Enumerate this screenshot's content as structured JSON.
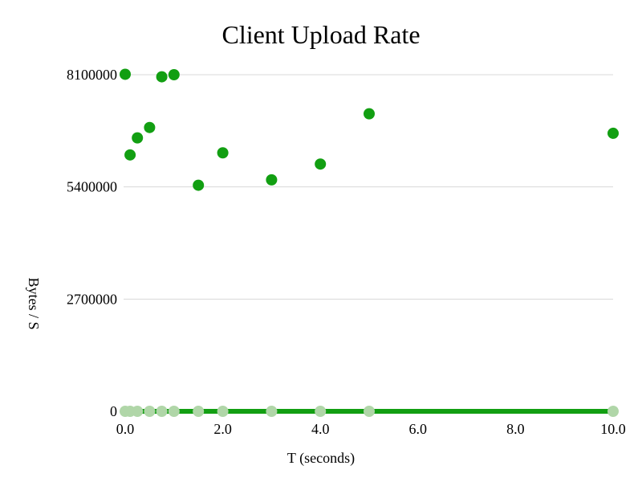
{
  "chart_data": {
    "type": "scatter",
    "title": "Client Upload Rate",
    "xlabel": "T (seconds)",
    "ylabel": "Bytes / S",
    "xlim": [
      0,
      10
    ],
    "ylim": [
      0,
      8100000
    ],
    "x_ticks": [
      "0.0",
      "2.0",
      "4.0",
      "6.0",
      "8.0",
      "10.0"
    ],
    "x_tick_values": [
      0,
      2,
      4,
      6,
      8,
      10
    ],
    "y_ticks": [
      "0",
      "2700000",
      "5400000",
      "8100000"
    ],
    "y_tick_values": [
      0,
      2700000,
      5400000,
      8100000
    ],
    "grid": "horizontal",
    "series": [
      {
        "color": "#129f12",
        "x": [
          0,
          0.1,
          0.25,
          0.5,
          0.75,
          1.0,
          1.5,
          2.0,
          3.0,
          4.0,
          5.0,
          10.0
        ],
        "y": [
          8110000,
          6170000,
          6580000,
          6830000,
          8050000,
          8100000,
          5440000,
          6220000,
          5570000,
          5950000,
          7160000,
          6690000
        ]
      },
      {
        "color": "#b0d6a8",
        "line_color": "#129f12",
        "x": [
          0,
          0.1,
          0.25,
          0.5,
          0.75,
          1.0,
          1.5,
          2.0,
          3.0,
          4.0,
          5.0,
          10.0
        ],
        "y": [
          0,
          0,
          0,
          0,
          0,
          0,
          0,
          0,
          0,
          0,
          0,
          0
        ]
      }
    ]
  }
}
